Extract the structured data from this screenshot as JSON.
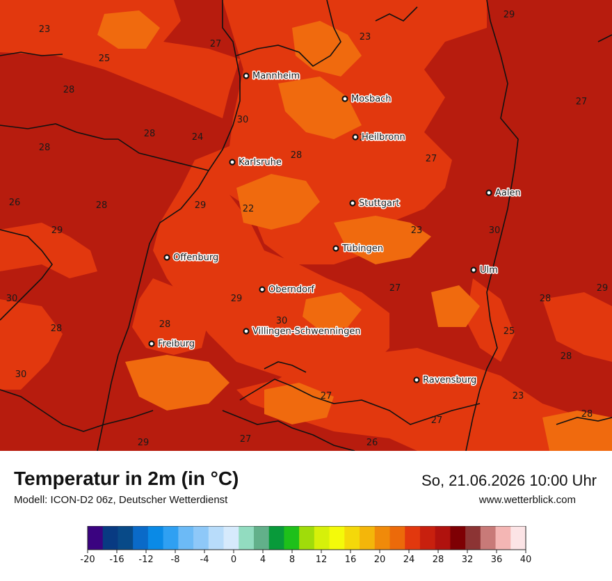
{
  "map": {
    "base_color": "#b71c0e",
    "warm_color": "#e2380e",
    "orange_color": "#f06a0e",
    "cities": [
      {
        "name": "Mannheim"
      },
      {
        "name": "Mosbach"
      },
      {
        "name": "Heilbronn"
      },
      {
        "name": "Karlsruhe"
      },
      {
        "name": "Aalen"
      },
      {
        "name": "Stuttgart"
      },
      {
        "name": "Tübingen"
      },
      {
        "name": "Offenburg"
      },
      {
        "name": "Ulm"
      },
      {
        "name": "Oberndorf"
      },
      {
        "name": "Villingen-Schwenningen"
      },
      {
        "name": "Freiburg"
      },
      {
        "name": "Ravensburg"
      }
    ],
    "temperatures": [
      "23",
      "27",
      "23",
      "29",
      "25",
      "28",
      "27",
      "30",
      "28",
      "28",
      "24",
      "28",
      "28",
      "27",
      "26",
      "28",
      "29",
      "22",
      "29",
      "23",
      "30",
      "30",
      "28",
      "27",
      "28",
      "29",
      "30",
      "29",
      "25",
      "28",
      "28",
      "30",
      "27",
      "23",
      "27",
      "28",
      "29",
      "27",
      "26"
    ]
  },
  "footer": {
    "title": "Temperatur in 2m (in °C)",
    "subtitle": "Modell: ICON-D2 06z, Deutscher Wetterdienst",
    "datetime": "So, 21.06.2026 10:00 Uhr",
    "website": "www.wetterblick.com"
  },
  "legend": {
    "ticks": [
      "-20",
      "-16",
      "-12",
      "-8",
      "-4",
      "0",
      "4",
      "8",
      "12",
      "16",
      "20",
      "24",
      "28",
      "32",
      "36",
      "40"
    ],
    "colors": [
      "#3a0380",
      "#083a82",
      "#084a88",
      "#0a6ac8",
      "#0a8ae6",
      "#2fa0f2",
      "#6cbaf6",
      "#8ec8f8",
      "#b8dcfa",
      "#d6eafc",
      "#92dcc0",
      "#62b08a",
      "#089a3a",
      "#1ec01a",
      "#a0dc0a",
      "#d6f00a",
      "#f4fa0a",
      "#f4d80a",
      "#f4b60a",
      "#f08a0a",
      "#ec6a0a",
      "#e2380e",
      "#c8200e",
      "#b0120e",
      "#7e0004",
      "#8c3434",
      "#c87a78",
      "#f4b6b4",
      "#fce4e6"
    ]
  }
}
